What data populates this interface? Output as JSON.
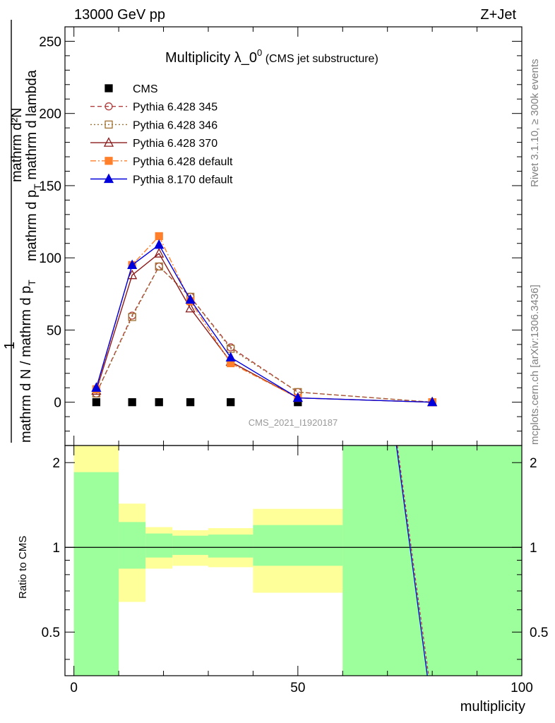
{
  "header": {
    "left_label": "13000 GeV pp",
    "right_label": "Z+Jet"
  },
  "side_notes": {
    "rivet": "Rivet 3.1.10, ≥ 300k events",
    "mcplots": "mcplots.cern.ch [arXiv:1306.3436]"
  },
  "chart_data": [
    {
      "type": "line",
      "title_main": "Multiplicity λ_0",
      "title_sup": "0",
      "title_sub": " (CMS jet substructure)",
      "watermark": "CMS_2021_I1920187",
      "ylabel_numerator": "mathrm d²N",
      "ylabel_fraction_one": "1",
      "ylabel_denominator": "mathrm d N / mathrm d p",
      "ylabel_numerator_parts": [
        "mathrm d p",
        "T",
        " mathrm d lambda"
      ],
      "xlim": [
        -2,
        100
      ],
      "ylim": [
        -30,
        260
      ],
      "y_ticks": [
        0,
        50,
        100,
        150,
        200,
        250
      ],
      "x_ticks": [
        0,
        50,
        100
      ],
      "series": [
        {
          "name": "CMS",
          "color": "#000000",
          "marker": "square-filled",
          "line": "none",
          "x": [
            5,
            13,
            19,
            26,
            35,
            50,
            80
          ],
          "y": [
            0,
            0,
            0,
            0,
            0,
            0,
            0
          ]
        },
        {
          "name": "Pythia 6.428 345",
          "color": "#b04040",
          "marker": "circle-open",
          "line": "dashed",
          "x": [
            5,
            13,
            19,
            26,
            35,
            50,
            80
          ],
          "y": [
            6,
            60,
            94,
            73,
            38,
            7,
            0
          ]
        },
        {
          "name": "Pythia 6.428 346",
          "color": "#a07030",
          "marker": "square-open",
          "line": "dotted",
          "x": [
            5,
            13,
            19,
            26,
            35,
            50,
            80
          ],
          "y": [
            6,
            59,
            94,
            73,
            37,
            7,
            0
          ]
        },
        {
          "name": "Pythia 6.428 370",
          "color": "#8b1a1a",
          "marker": "triangle-open",
          "line": "solid",
          "x": [
            5,
            13,
            19,
            26,
            35,
            50,
            80
          ],
          "y": [
            8,
            88,
            103,
            65,
            28,
            3,
            0
          ]
        },
        {
          "name": "Pythia 6.428 default",
          "color": "#ff7f2a",
          "marker": "square-filled",
          "line": "dashdot",
          "x": [
            5,
            13,
            19,
            26,
            35,
            50,
            80
          ],
          "y": [
            9,
            95,
            115,
            70,
            27,
            3,
            0
          ]
        },
        {
          "name": "Pythia 8.170 default",
          "color": "#0000dd",
          "marker": "triangle-filled",
          "line": "solid",
          "x": [
            5,
            13,
            19,
            26,
            35,
            50,
            80
          ],
          "y": [
            10,
            95,
            109,
            71,
            31,
            3,
            0
          ]
        }
      ]
    },
    {
      "type": "area",
      "ylabel": "Ratio to CMS",
      "xlabel": "multiplicity",
      "xlim": [
        -2,
        100
      ],
      "ylim": [
        0.35,
        2.3
      ],
      "y_ticks": [
        0.5,
        1,
        2
      ],
      "x_ticks": [
        0,
        50,
        100
      ],
      "reference_line": 1,
      "bands": [
        {
          "x0": 0,
          "x1": 10,
          "green_lo": 0.35,
          "green_hi": 1.85,
          "yellow_lo": 0.35,
          "yellow_hi": 2.3
        },
        {
          "x0": 10,
          "x1": 16,
          "green_lo": 0.84,
          "green_hi": 1.23,
          "yellow_lo": 0.64,
          "yellow_hi": 1.43
        },
        {
          "x0": 16,
          "x1": 22,
          "green_lo": 0.92,
          "green_hi": 1.12,
          "yellow_lo": 0.84,
          "yellow_hi": 1.18
        },
        {
          "x0": 22,
          "x1": 30,
          "green_lo": 0.94,
          "green_hi": 1.1,
          "yellow_lo": 0.86,
          "yellow_hi": 1.15
        },
        {
          "x0": 30,
          "x1": 40,
          "green_lo": 0.92,
          "green_hi": 1.11,
          "yellow_lo": 0.85,
          "yellow_hi": 1.17
        },
        {
          "x0": 40,
          "x1": 60,
          "green_lo": 0.86,
          "green_hi": 1.2,
          "yellow_lo": 0.69,
          "yellow_hi": 1.37
        },
        {
          "x0": 60,
          "x1": 100,
          "green_lo": 0.35,
          "green_hi": 2.3,
          "yellow_lo": 0.35,
          "yellow_hi": 2.3
        }
      ],
      "ratio_lines": [
        {
          "name": "Pythia 6.428 345",
          "color": "#b04040",
          "dash": "4,3",
          "x": [
            72.2,
            79.2
          ],
          "y": [
            2.3,
            0.35
          ]
        },
        {
          "name": "Pythia 8.170 default",
          "color": "#0000dd",
          "dash": "",
          "x": [
            72.0,
            78.9
          ],
          "y": [
            2.3,
            0.35
          ]
        }
      ],
      "band_colors": {
        "green": "#9cff9c",
        "yellow": "#ffff99"
      }
    }
  ]
}
